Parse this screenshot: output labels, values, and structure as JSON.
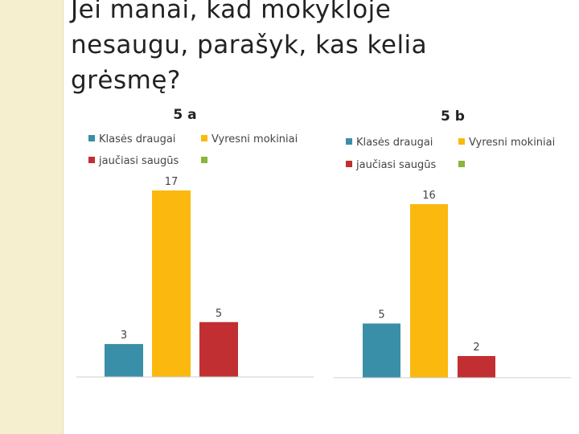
{
  "page": {
    "title_line1": "Jei manai, kad mokykloje",
    "title_line2": "nesaugu, parašyk, kas kelia",
    "title_line3": "grėsmę?"
  },
  "colors": {
    "teal": "#3a8fa8",
    "yellow": "#fbb80f",
    "red": "#c22f32",
    "green": "#8bb43a",
    "axis": "#cccccc"
  },
  "chart_data": [
    {
      "type": "bar",
      "title": "5 a",
      "legend": [
        "Klasės draugai",
        "Vyresni mokiniai",
        "jaučiasi saugūs",
        ""
      ],
      "categories": [
        "Klasės draugai",
        "Vyresni mokiniai",
        "jaučiasi saugūs"
      ],
      "values": [
        3,
        17,
        5
      ],
      "data_labels": [
        "3",
        "17",
        "5"
      ],
      "ylim": [
        0,
        17
      ]
    },
    {
      "type": "bar",
      "title": "5 b",
      "legend": [
        "Klasės draugai",
        "Vyresni mokiniai",
        "jaučiasi saugūs",
        ""
      ],
      "categories": [
        "Klasės draugai",
        "Vyresni mokiniai",
        "jaučiasi saugūs"
      ],
      "values": [
        5,
        16,
        2
      ],
      "data_labels": [
        "5",
        "16",
        "2"
      ],
      "ylim": [
        0,
        16
      ]
    }
  ]
}
